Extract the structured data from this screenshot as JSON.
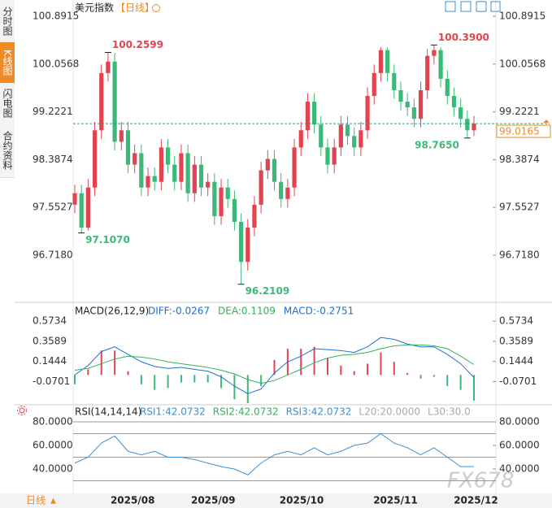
{
  "header": {
    "title": "美元指数",
    "period": "【日线】"
  },
  "sidebar": [
    "分时图",
    "K线图",
    "闪电图",
    "合约资料"
  ],
  "footer": {
    "period": "日线"
  },
  "watermark": "FX678",
  "chart_data": {
    "type": "candlestick",
    "up_color": "#e2434f",
    "down_color": "#3cb878",
    "ylim": [
      95.923,
      101.062
    ],
    "yticks": [
      100.8915,
      100.0568,
      99.2221,
      98.3874,
      97.5527,
      {
        "value": 96.718,
        "label": "96.7180"
      }
    ],
    "xticks": [
      {
        "value": 8.7,
        "label": "2025/08"
      },
      {
        "value": 20.8,
        "label": "2025/09"
      },
      {
        "value": 34.1,
        "label": "2025/10"
      },
      {
        "value": 48.2,
        "label": "2025/11"
      },
      {
        "value": 60.3,
        "label": "2025/12"
      }
    ],
    "open": [
      97.6,
      97.8,
      97.2,
      97.9,
      98.9,
      99.9,
      100.1,
      98.7,
      98.9,
      98.3,
      98.5,
      97.9,
      98.1,
      98.0,
      98.6,
      98.3,
      98.0,
      98.5,
      97.8,
      98.3,
      97.9,
      98.0,
      97.4,
      97.9,
      97.7,
      97.3,
      96.6,
      97.2,
      97.6,
      98.2,
      98.4,
      98.0,
      97.7,
      97.9,
      98.6,
      98.9,
      99.4,
      99.0,
      98.6,
      98.3,
      98.6,
      99.0,
      98.8,
      98.6,
      98.9,
      99.5,
      99.9,
      100.3,
      99.9,
      99.6,
      99.4,
      99.3,
      99.1,
      99.6,
      100.2,
      100.3,
      99.8,
      99.5,
      99.3,
      99.1,
      98.9
    ],
    "high": [
      97.95,
      97.95,
      98.05,
      99.05,
      100.05,
      100.2599,
      100.25,
      99.05,
      99.05,
      98.65,
      98.65,
      98.25,
      98.25,
      98.75,
      98.75,
      98.45,
      98.65,
      98.65,
      98.45,
      98.45,
      98.15,
      98.15,
      98.05,
      98.05,
      97.85,
      97.45,
      97.35,
      97.75,
      98.35,
      98.55,
      98.55,
      98.15,
      98.05,
      98.75,
      99.05,
      99.55,
      99.55,
      99.15,
      98.75,
      98.75,
      99.15,
      99.15,
      98.95,
      99.05,
      99.65,
      100.05,
      100.35,
      100.35,
      100.05,
      99.75,
      99.55,
      99.45,
      99.75,
      100.32,
      100.39,
      100.35,
      99.95,
      99.65,
      99.45,
      99.25,
      99.15
    ],
    "low": [
      97.45,
      97.107,
      97.15,
      97.75,
      98.75,
      99.75,
      98.55,
      98.55,
      98.15,
      98.15,
      97.75,
      97.75,
      97.85,
      97.85,
      98.15,
      97.85,
      97.85,
      97.65,
      97.65,
      97.75,
      97.75,
      97.25,
      97.25,
      97.55,
      97.15,
      96.2109,
      96.45,
      97.05,
      97.45,
      98.05,
      97.85,
      97.55,
      97.55,
      97.75,
      98.45,
      98.75,
      98.85,
      98.45,
      98.15,
      98.15,
      98.45,
      98.65,
      98.45,
      98.45,
      98.75,
      99.35,
      99.75,
      99.75,
      99.45,
      99.25,
      99.15,
      98.95,
      98.95,
      99.45,
      100.05,
      99.65,
      99.35,
      99.15,
      98.95,
      98.765,
      98.8
    ],
    "close": [
      97.8,
      97.2,
      97.9,
      98.9,
      99.9,
      100.1,
      98.7,
      98.9,
      98.3,
      98.5,
      97.9,
      98.1,
      98.0,
      98.6,
      98.3,
      98.0,
      98.5,
      97.8,
      98.3,
      97.9,
      98.0,
      97.4,
      97.9,
      97.7,
      97.3,
      96.6,
      97.2,
      97.6,
      98.2,
      98.4,
      98.0,
      97.7,
      97.9,
      98.6,
      98.9,
      99.4,
      99.0,
      98.6,
      98.3,
      98.6,
      99.0,
      98.8,
      98.6,
      98.9,
      99.5,
      99.9,
      100.3,
      99.9,
      99.6,
      99.4,
      99.3,
      99.1,
      99.6,
      100.2,
      100.3,
      99.8,
      99.5,
      99.3,
      99.1,
      98.9,
      99.0165
    ],
    "high_labels": [
      null,
      null,
      null,
      null,
      null,
      "100.2599",
      null,
      null,
      null,
      null,
      null,
      null,
      null,
      null,
      null,
      null,
      null,
      null,
      null,
      null,
      null,
      null,
      null,
      null,
      null,
      null,
      null,
      null,
      null,
      null,
      null,
      null,
      null,
      null,
      null,
      null,
      null,
      null,
      null,
      null,
      null,
      null,
      null,
      null,
      null,
      null,
      null,
      null,
      null,
      null,
      null,
      null,
      null,
      null,
      "100.3900",
      null,
      null,
      null,
      null,
      null,
      null
    ],
    "low_labels": [
      null,
      "97.1070",
      null,
      null,
      null,
      null,
      null,
      null,
      null,
      null,
      null,
      null,
      null,
      null,
      null,
      null,
      null,
      null,
      null,
      null,
      null,
      null,
      null,
      null,
      null,
      "96.2109",
      null,
      null,
      null,
      null,
      null,
      null,
      null,
      null,
      null,
      null,
      null,
      null,
      null,
      null,
      null,
      null,
      null,
      null,
      null,
      null,
      null,
      null,
      null,
      null,
      null,
      null,
      null,
      null,
      null,
      null,
      null,
      null,
      null,
      "98.7650",
      null
    ],
    "price_color": "#f08a24",
    "macd": {
      "title": "MACD(26,12,9)",
      "ylim": [
        -0.31,
        0.74
      ],
      "yticks": [
        0.5734,
        0.3589,
        0.1444,
        -0.0701
      ],
      "series": [
        {
          "name": "DIFF",
          "legend": "DIFF:-0.0267",
          "color": "#1f6fd1",
          "values": [
            0.0,
            0.1,
            0.25,
            0.3,
            0.22,
            0.14,
            0.09,
            0.07,
            0.08,
            0.06,
            0.04,
            -0.02,
            -0.12,
            -0.2,
            -0.15,
            0.02,
            0.14,
            0.2,
            0.28,
            0.27,
            0.26,
            0.24,
            0.3,
            0.4,
            0.38,
            0.33,
            0.3,
            0.3,
            0.22,
            0.12,
            -0.0267
          ]
        },
        {
          "name": "DEA",
          "legend": "DEA:0.1109",
          "color": "#33b05a",
          "values": [
            0.05,
            0.07,
            0.12,
            0.17,
            0.2,
            0.19,
            0.17,
            0.14,
            0.12,
            0.1,
            0.08,
            0.05,
            0.01,
            -0.05,
            -0.09,
            -0.06,
            0.0,
            0.06,
            0.13,
            0.18,
            0.21,
            0.22,
            0.24,
            0.28,
            0.31,
            0.32,
            0.32,
            0.31,
            0.28,
            0.2,
            0.1109
          ]
        }
      ],
      "hist": {
        "name": "MACD",
        "legend": "MACD:-0.2751",
        "values": [
          -0.1,
          0.06,
          0.26,
          0.26,
          0.04,
          -0.1,
          -0.16,
          -0.14,
          -0.08,
          -0.08,
          -0.08,
          -0.14,
          -0.26,
          -0.3,
          -0.12,
          0.16,
          0.28,
          0.28,
          0.3,
          0.18,
          0.1,
          0.04,
          0.12,
          0.24,
          0.14,
          0.02,
          -0.04,
          -0.02,
          -0.12,
          -0.16,
          -0.2751
        ]
      }
    },
    "rsi": {
      "title": "RSI(14,14,14)",
      "ylim": [
        20.7,
        93.1
      ],
      "yticks": [
        {
          "value": 80,
          "label": "80.0000"
        },
        {
          "value": 60,
          "label": "60.0000"
        },
        {
          "value": 40,
          "label": "40.0000"
        }
      ],
      "ref_lines": [
        80,
        70,
        50,
        30
      ],
      "legends": [
        {
          "text": "RSI1:42.0732",
          "color": "#3a8fd6"
        },
        {
          "text": "RSI2:42.0732",
          "color": "#33b05a"
        },
        {
          "text": "RSI3:42.0732",
          "color": "#3a8fd6"
        },
        {
          "text": "L20:20.0000",
          "color": "#aaaaaa"
        },
        {
          "text": "L30:30.0",
          "color": "#aaaaaa"
        }
      ],
      "color": "#3a8fd6",
      "values": [
        45,
        50,
        62,
        68,
        55,
        52,
        55,
        50,
        50,
        48,
        45,
        42,
        40,
        35,
        45,
        52,
        55,
        52,
        58,
        52,
        55,
        60,
        62,
        70,
        62,
        58,
        52,
        58,
        50,
        42,
        42.0732
      ]
    }
  }
}
